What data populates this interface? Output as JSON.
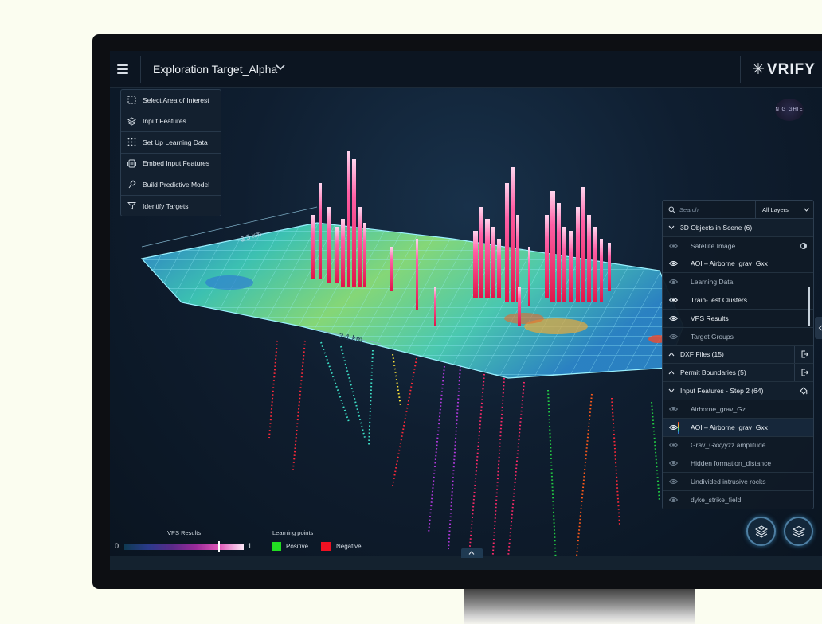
{
  "app": {
    "project_title": "Exploration Target_Alpha",
    "brand": "VRIFY",
    "brand_glyph": "✳",
    "accent_color": "#4e7fa3"
  },
  "workflow": {
    "items": [
      {
        "label": "Select Area of Interest",
        "icon": "dashed-square-icon"
      },
      {
        "label": "Input Features",
        "icon": "layers-icon"
      },
      {
        "label": "Set Up Learning Data",
        "icon": "dot-grid-icon"
      },
      {
        "label": "Embed Input Features",
        "icon": "embed-icon"
      },
      {
        "label": "Build Predictive Model",
        "icon": "model-icon"
      },
      {
        "label": "Identify Targets",
        "icon": "filter-icon"
      }
    ]
  },
  "scene": {
    "dimension_label_1": "3.3 km",
    "dimension_label_2": "3.1 km",
    "overlay_badge": "N G GHIE"
  },
  "layers_panel": {
    "search_placeholder": "Search",
    "layers_filter": "All Layers",
    "sections": {
      "objects_header": "3D Objects in Scene (6)",
      "dxf_header": "DXF Files (15)",
      "permit_header": "Permit Boundaries (5)",
      "input_header": "Input Features - Step 2 (64)"
    },
    "objects": [
      {
        "label": "Satellite Image",
        "visible": false
      },
      {
        "label": "AOI – Airborne_grav_Gxx",
        "visible": true
      },
      {
        "label": "Learning Data",
        "visible": false
      },
      {
        "label": "Train-Test Clusters",
        "visible": true
      },
      {
        "label": "VPS Results",
        "visible": true
      },
      {
        "label": "Target Groups",
        "visible": false
      }
    ],
    "input_features": [
      {
        "label": "Airborne_grav_Gz",
        "visible": false
      },
      {
        "label": "AOI – Airborne_grav_Gxx",
        "visible": true
      },
      {
        "label": "Grav_Gxxyyzz amplitude",
        "visible": false
      },
      {
        "label": "Hidden formation_distance",
        "visible": false
      },
      {
        "label": "Undivided intrusive rocks",
        "visible": false
      },
      {
        "label": "dyke_strike_field",
        "visible": false
      }
    ]
  },
  "legend": {
    "vps_title": "VPS Results",
    "vps_min": "0",
    "vps_max": "1",
    "learning_title": "Learning points",
    "positive_label": "Positive",
    "negative_label": "Negative",
    "positive_color": "#22dd22",
    "negative_color": "#ee1122"
  }
}
